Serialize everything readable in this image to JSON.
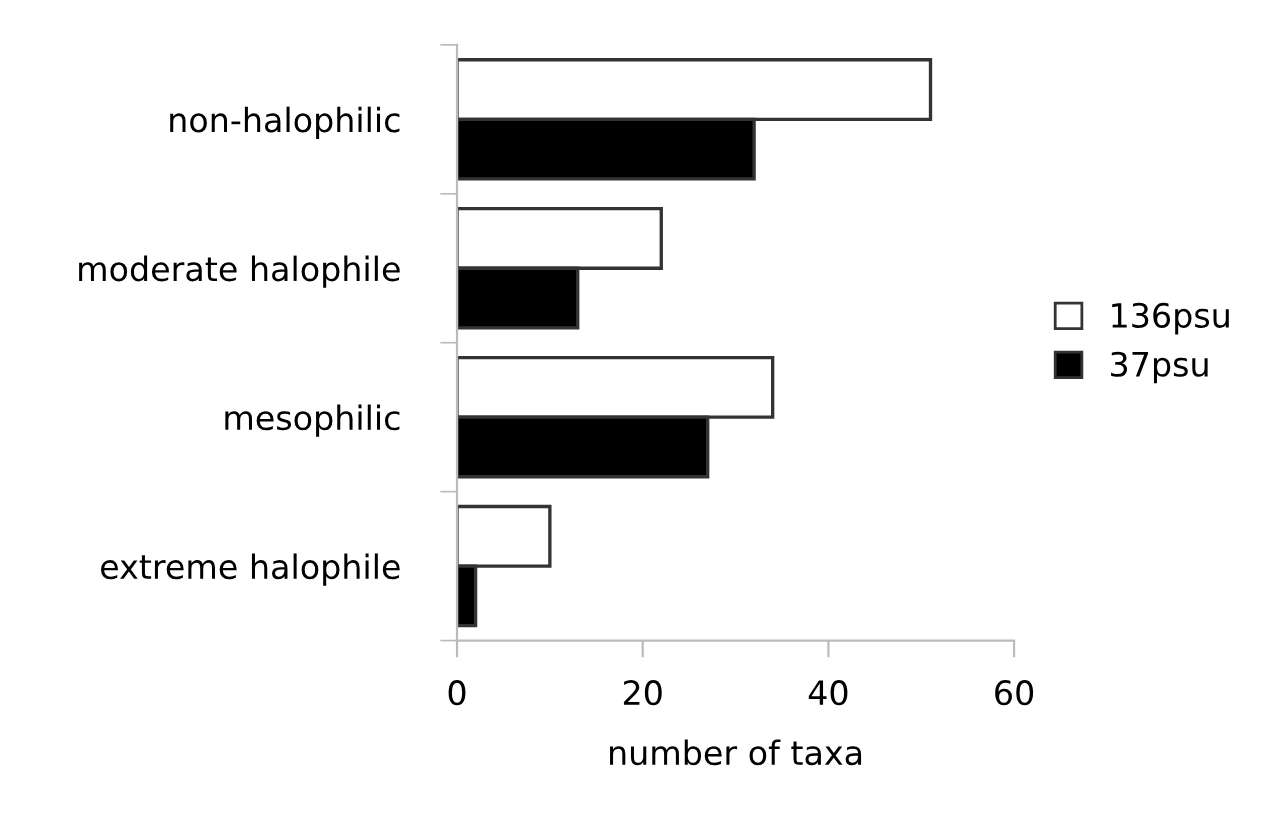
{
  "chart_data": {
    "type": "bar",
    "orientation": "horizontal",
    "xlabel": "number of taxa",
    "categories": [
      "non-halophilic",
      "moderate halophile",
      "mesophilic",
      "extreme halophile"
    ],
    "series": [
      {
        "name": "136psu",
        "color": "#ffffff",
        "values": [
          51,
          22,
          34,
          10
        ]
      },
      {
        "name": "37psu",
        "color": "#000000",
        "values": [
          32,
          13,
          27,
          2
        ]
      }
    ],
    "xlim": [
      0,
      60
    ],
    "xticks": [
      0,
      20,
      40,
      60
    ],
    "grid": false,
    "legend": "right"
  }
}
